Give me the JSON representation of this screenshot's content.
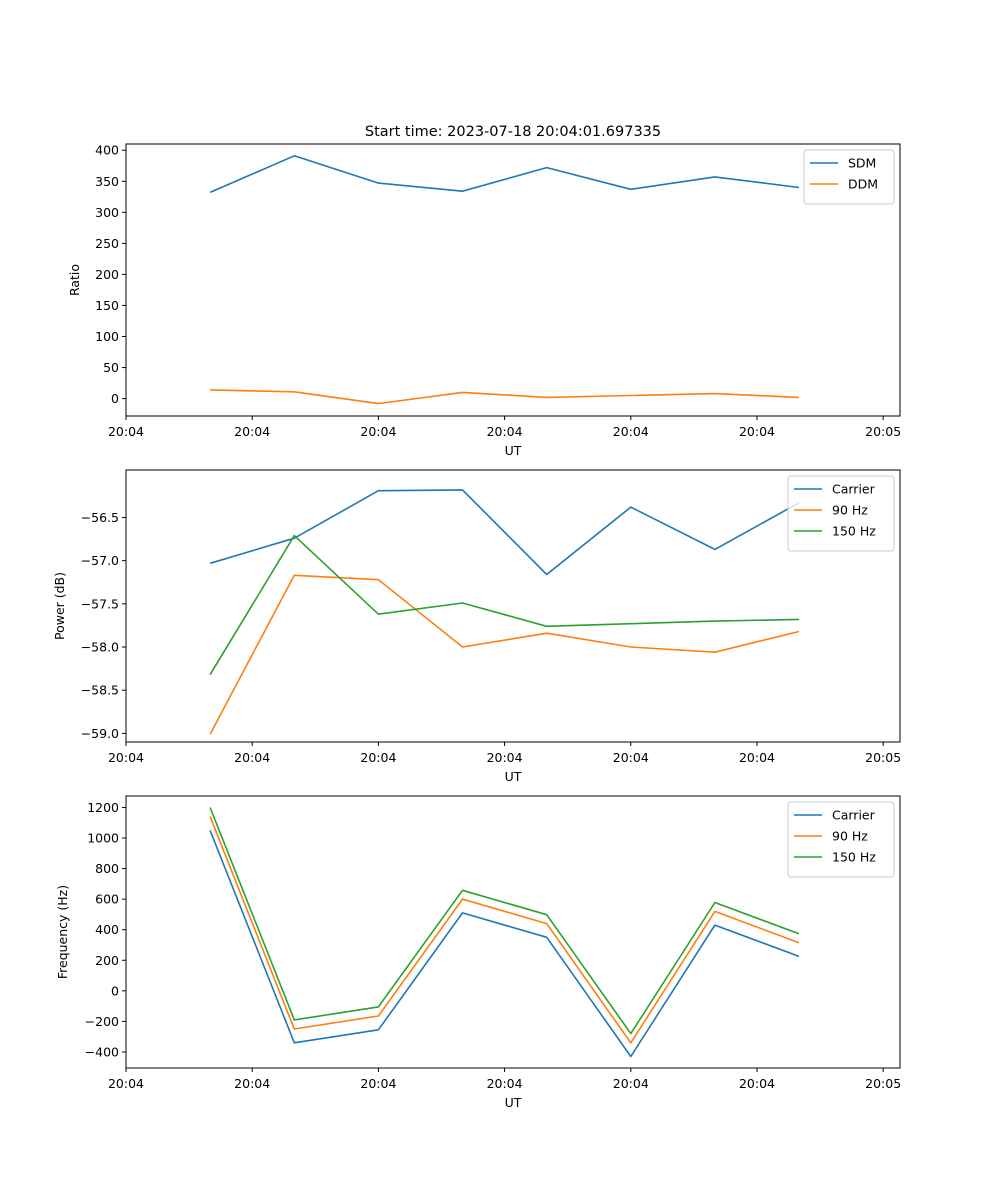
{
  "title": "Start time: 2023-07-18 20:04:01.697335",
  "chart_data": [
    {
      "type": "line",
      "title": "Start time: 2023-07-18 20:04:01.697335",
      "xlabel": "UT",
      "ylabel": "Ratio",
      "x": [
        1,
        2,
        3,
        4,
        5,
        6,
        7,
        8
      ],
      "xlim": [
        0,
        9.2
      ],
      "ylim": [
        -28,
        410
      ],
      "yticks": [
        0,
        50,
        100,
        150,
        200,
        250,
        300,
        350,
        400
      ],
      "xticks": [
        0,
        1.5,
        3,
        4.5,
        6,
        7.5,
        9
      ],
      "xtick_labels": [
        "20:04",
        "20:04",
        "20:04",
        "20:04",
        "20:04",
        "20:04",
        "20:05"
      ],
      "legend": "top-right",
      "series": [
        {
          "name": "SDM",
          "color": "#1f77b4",
          "values": [
            332,
            391,
            347,
            334,
            372,
            337,
            357,
            340
          ]
        },
        {
          "name": "DDM",
          "color": "#ff7f0e",
          "values": [
            14,
            11,
            -8,
            10,
            2,
            5,
            8,
            2
          ]
        }
      ]
    },
    {
      "type": "line",
      "title": "",
      "xlabel": "UT",
      "ylabel": "Power (dB)",
      "x": [
        1,
        2,
        3,
        4,
        5,
        6,
        7,
        8
      ],
      "xlim": [
        0,
        9.2
      ],
      "ylim": [
        -59.1,
        -55.95
      ],
      "yticks": [
        -59.0,
        -58.5,
        -58.0,
        -57.5,
        -57.0,
        -56.5
      ],
      "ytick_labels": [
        "−59.0",
        "−58.5",
        "−58.0",
        "−57.5",
        "−57.0",
        "−56.5"
      ],
      "xticks": [
        0,
        1.5,
        3,
        4.5,
        6,
        7.5,
        9
      ],
      "xtick_labels": [
        "20:04",
        "20:04",
        "20:04",
        "20:04",
        "20:04",
        "20:04",
        "20:05"
      ],
      "legend": "top-right",
      "series": [
        {
          "name": "Carrier",
          "color": "#1f77b4",
          "values": [
            -57.03,
            -56.74,
            -56.19,
            -56.18,
            -57.16,
            -56.38,
            -56.87,
            -56.33
          ]
        },
        {
          "name": "90 Hz",
          "color": "#ff7f0e",
          "values": [
            -59.01,
            -57.17,
            -57.22,
            -58.0,
            -57.84,
            -58.0,
            -58.06,
            -57.82
          ]
        },
        {
          "name": "150 Hz",
          "color": "#2ca02c",
          "values": [
            -58.32,
            -56.71,
            -57.62,
            -57.49,
            -57.76,
            -57.73,
            -57.7,
            -57.68
          ]
        }
      ]
    },
    {
      "type": "line",
      "title": "",
      "xlabel": "UT",
      "ylabel": "Frequency (Hz)",
      "x": [
        1,
        2,
        3,
        4,
        5,
        6,
        7,
        8
      ],
      "xlim": [
        0,
        9.2
      ],
      "ylim": [
        -505,
        1275
      ],
      "yticks": [
        -400,
        -200,
        0,
        200,
        400,
        600,
        800,
        1000,
        1200
      ],
      "ytick_labels": [
        "−400",
        "−200",
        "0",
        "200",
        "400",
        "600",
        "800",
        "1000",
        "1200"
      ],
      "xticks": [
        0,
        1.5,
        3,
        4.5,
        6,
        7.5,
        9
      ],
      "xtick_labels": [
        "20:04",
        "20:04",
        "20:04",
        "20:04",
        "20:04",
        "20:04",
        "20:05"
      ],
      "legend": "top-right",
      "series": [
        {
          "name": "Carrier",
          "color": "#1f77b4",
          "values": [
            1050,
            -340,
            -255,
            510,
            350,
            -430,
            430,
            225
          ]
        },
        {
          "name": "90 Hz",
          "color": "#ff7f0e",
          "values": [
            1140,
            -250,
            -165,
            600,
            440,
            -340,
            520,
            315
          ]
        },
        {
          "name": "150 Hz",
          "color": "#2ca02c",
          "values": [
            1200,
            -190,
            -105,
            658,
            498,
            -280,
            578,
            373
          ]
        }
      ]
    }
  ]
}
